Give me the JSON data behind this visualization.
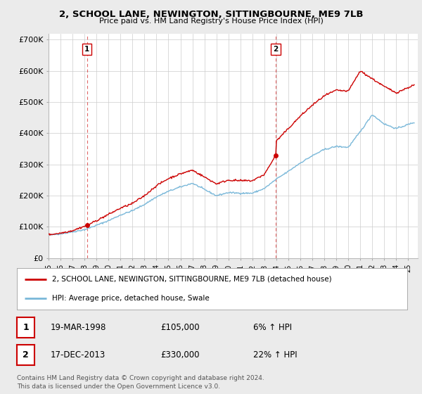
{
  "title": "2, SCHOOL LANE, NEWINGTON, SITTINGBOURNE, ME9 7LB",
  "subtitle": "Price paid vs. HM Land Registry's House Price Index (HPI)",
  "ylabel_ticks": [
    "£0",
    "£100K",
    "£200K",
    "£300K",
    "£400K",
    "£500K",
    "£600K",
    "£700K"
  ],
  "ytick_values": [
    0,
    100000,
    200000,
    300000,
    400000,
    500000,
    600000,
    700000
  ],
  "ylim": [
    0,
    720000
  ],
  "xlim_start": 1995.0,
  "xlim_end": 2025.8,
  "sale1_x": 1998.21,
  "sale1_y": 105000,
  "sale2_x": 2013.96,
  "sale2_y": 330000,
  "legend_line1": "2, SCHOOL LANE, NEWINGTON, SITTINGBOURNE, ME9 7LB (detached house)",
  "legend_line2": "HPI: Average price, detached house, Swale",
  "table_row1": [
    "1",
    "19-MAR-1998",
    "£105,000",
    "6% ↑ HPI"
  ],
  "table_row2": [
    "2",
    "17-DEC-2013",
    "£330,000",
    "22% ↑ HPI"
  ],
  "footer": "Contains HM Land Registry data © Crown copyright and database right 2024.\nThis data is licensed under the Open Government Licence v3.0.",
  "hpi_color": "#7ab8d9",
  "price_color": "#cc0000",
  "bg_color": "#ebebeb",
  "plot_bg": "#ffffff",
  "grid_color": "#cccccc",
  "dashed_line_color": "#cc0000",
  "hpi_waypoints_x": [
    1995,
    1996,
    1997,
    1998,
    1999,
    2000,
    2001,
    2002,
    2003,
    2004,
    2005,
    2006,
    2007,
    2008,
    2009,
    2010,
    2011,
    2012,
    2013,
    2014,
    2015,
    2016,
    2017,
    2018,
    2019,
    2020,
    2021,
    2022,
    2023,
    2024,
    2025.5
  ],
  "hpi_waypoints_y": [
    73000,
    78000,
    84000,
    91000,
    105000,
    120000,
    138000,
    152000,
    172000,
    196000,
    214000,
    228000,
    240000,
    220000,
    200000,
    210000,
    208000,
    208000,
    223000,
    253000,
    278000,
    305000,
    328000,
    348000,
    358000,
    355000,
    405000,
    460000,
    430000,
    415000,
    435000
  ],
  "prop_waypoints_x": [
    1995,
    1996,
    1997,
    1998.21,
    1999,
    2000,
    2001,
    2002,
    2003,
    2004,
    2005,
    2006,
    2007,
    2008,
    2009,
    2010,
    2011,
    2012,
    2013,
    2013.96,
    2014,
    2015,
    2016,
    2017,
    2018,
    2019,
    2020,
    2021,
    2022,
    2023,
    2024,
    2025.5
  ],
  "prop_waypoints_y": [
    75000,
    80000,
    88000,
    105000,
    120000,
    140000,
    160000,
    175000,
    200000,
    232000,
    255000,
    270000,
    282000,
    260000,
    238000,
    250000,
    248000,
    248000,
    268000,
    330000,
    375000,
    415000,
    455000,
    490000,
    520000,
    538000,
    535000,
    600000,
    575000,
    550000,
    530000,
    555000
  ]
}
